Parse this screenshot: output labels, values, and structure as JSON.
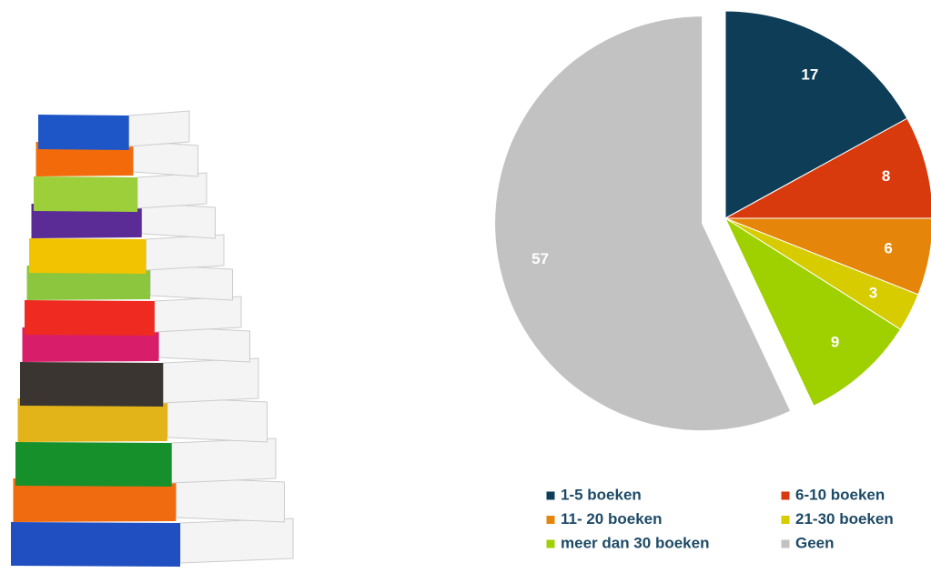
{
  "chart_data": {
    "type": "pie",
    "categories": [
      "1-5 boeken",
      "6-10 boeken",
      "11- 20 boeken",
      "21-30 boeken",
      "meer dan 30 boeken",
      "Geen"
    ],
    "values": [
      17,
      8,
      6,
      3,
      9,
      57
    ],
    "colors": [
      "#0e3d57",
      "#d83a0e",
      "#e5860a",
      "#d6cc00",
      "#9fd000",
      "#c2c2c2"
    ],
    "exploded": [
      5
    ]
  }
}
